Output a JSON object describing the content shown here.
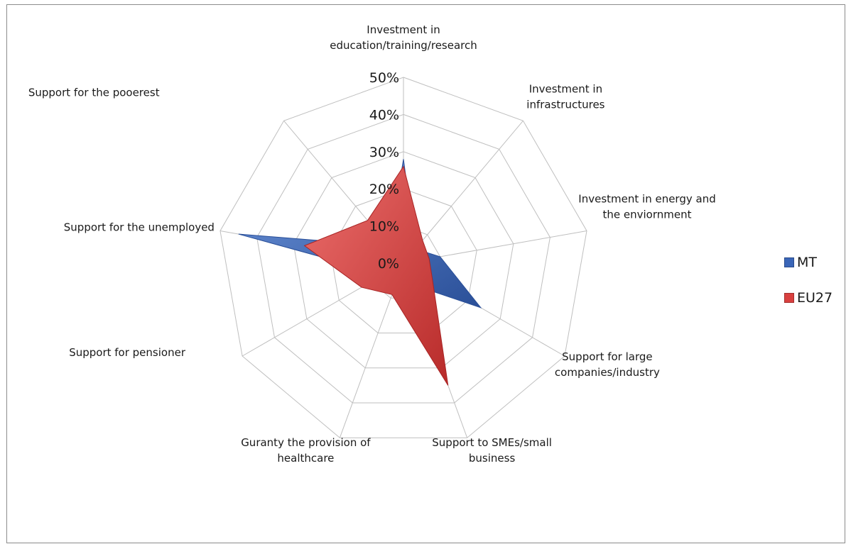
{
  "chart_data": {
    "type": "radar",
    "categories": [
      [
        "Investment in",
        "education/training/research"
      ],
      [
        "Investment in",
        "infrastructures"
      ],
      [
        "Investment in energy and",
        "the enviornment"
      ],
      [
        "Support for large",
        "companies/industry"
      ],
      [
        "Support to SMEs/small",
        "business"
      ],
      [
        "Guranty the provision of",
        "healthcare"
      ],
      [
        "Support for pensioner"
      ],
      [
        "Support for the unemployed"
      ],
      [
        "Support for the pooerest"
      ]
    ],
    "ticks": [
      "0%",
      "10%",
      "20%",
      "30%",
      "40%",
      "50%"
    ],
    "tick_values": [
      0,
      10,
      20,
      30,
      40,
      50
    ],
    "rlim": [
      0,
      50
    ],
    "grid": true,
    "legend_position": "right",
    "series": [
      {
        "name": "MT",
        "values": [
          28,
          5,
          10,
          24,
          6,
          9,
          6,
          45,
          6
        ],
        "color": "#3a66b8"
      },
      {
        "name": "EU27",
        "values": [
          26,
          8,
          7,
          9,
          35,
          9,
          13,
          27,
          15
        ],
        "color": "#d9403f"
      }
    ]
  }
}
